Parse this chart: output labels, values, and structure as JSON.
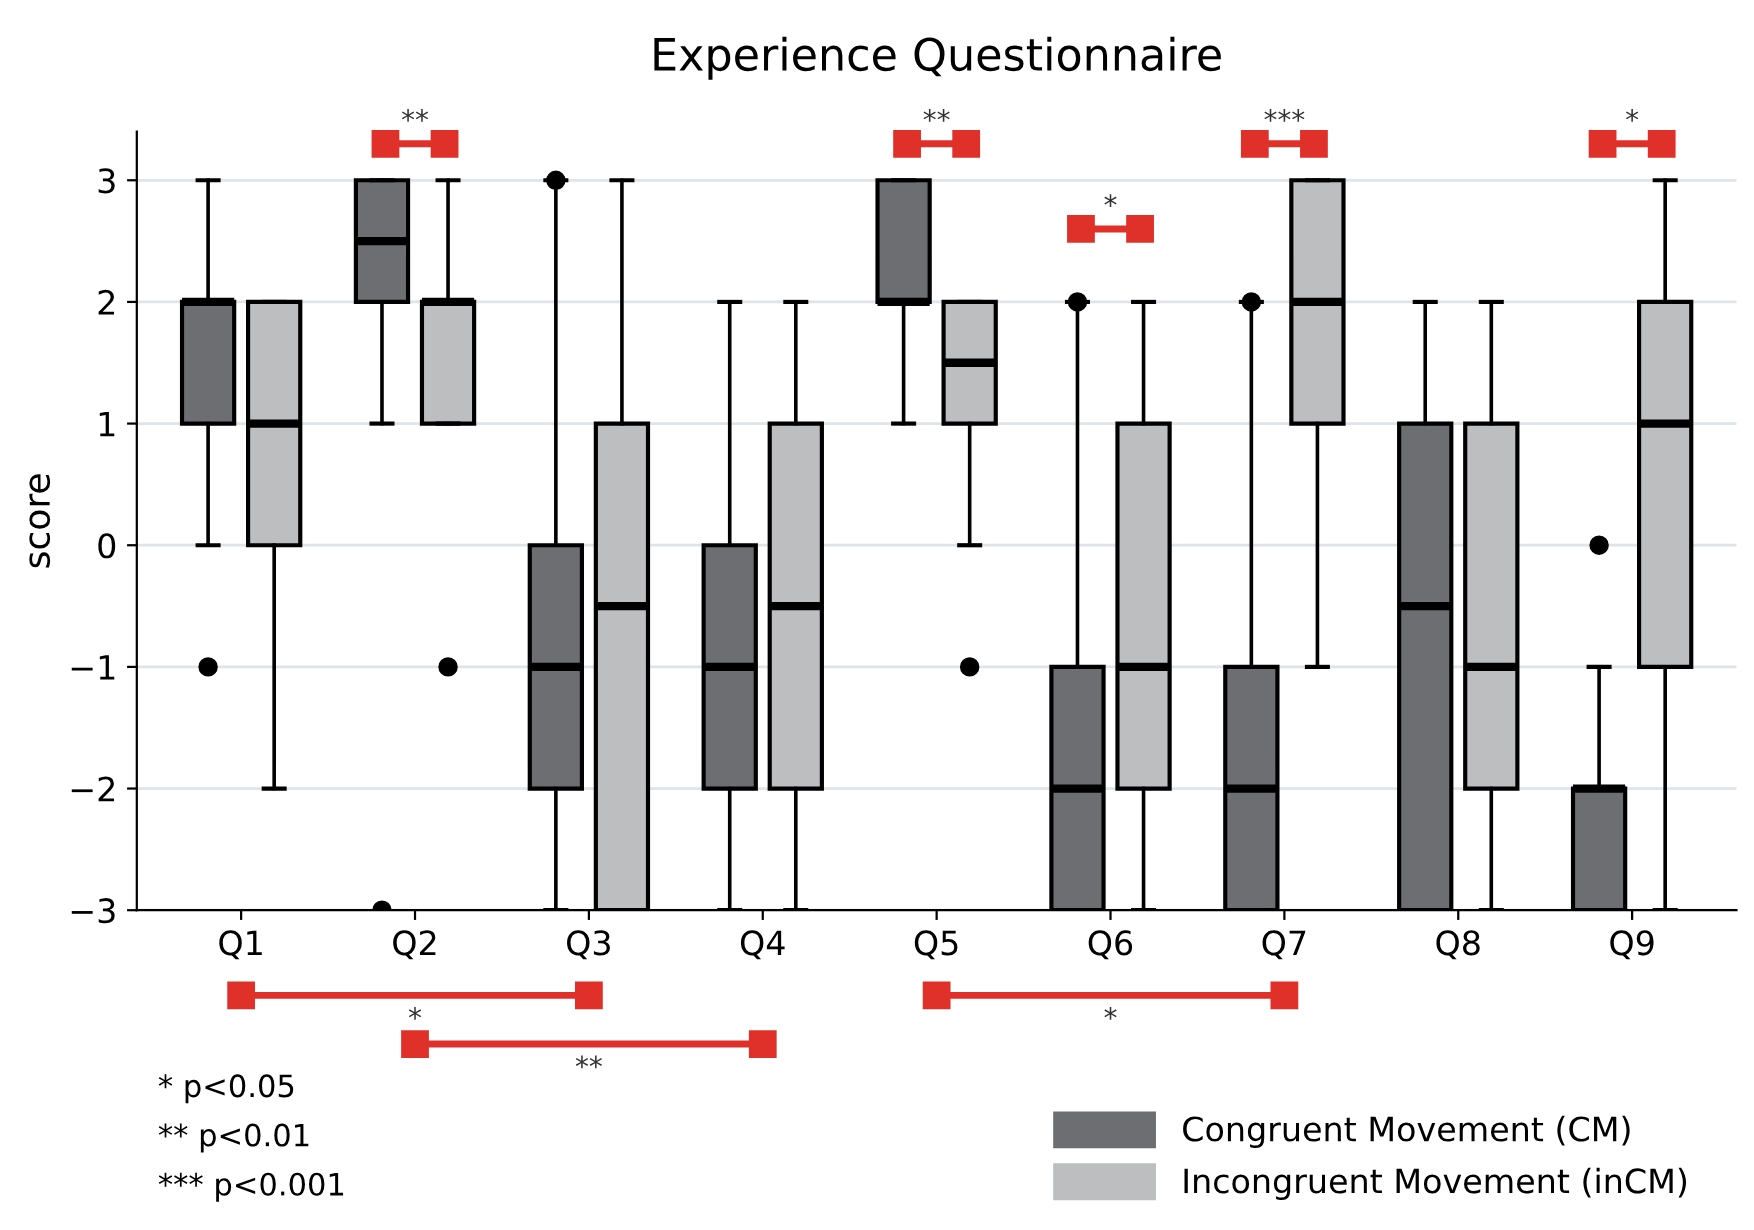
{
  "chart_data": {
    "type": "box",
    "title": "Experience Questionnaire",
    "ylabel": "score",
    "categories": [
      "Q1",
      "Q2",
      "Q3",
      "Q4",
      "Q5",
      "Q6",
      "Q7",
      "Q8",
      "Q9"
    ],
    "series": [
      {
        "name": "Congruent Movement (CM)",
        "color": "#6d6e71",
        "boxes": [
          {
            "low": 0,
            "q1": 1,
            "median": 2,
            "q3": 2,
            "high": 3,
            "outliers": [
              -1
            ]
          },
          {
            "low": 1,
            "q1": 2,
            "median": 2.5,
            "q3": 3,
            "high": 3,
            "outliers": [
              -3
            ]
          },
          {
            "low": -3,
            "q1": -2,
            "median": -1,
            "q3": 0,
            "high": 3,
            "outliers": [
              3
            ]
          },
          {
            "low": -3,
            "q1": -2,
            "median": -1,
            "q3": 0,
            "high": 2
          },
          {
            "low": 1,
            "q1": 2,
            "median": 2,
            "q3": 3,
            "high": 3
          },
          {
            "low": -3,
            "q1": -3,
            "median": -2,
            "q3": -1,
            "high": 2,
            "outliers": [
              2
            ]
          },
          {
            "low": -3,
            "q1": -3,
            "median": -2,
            "q3": -1,
            "high": 2,
            "outliers": [
              2
            ]
          },
          {
            "low": -3,
            "q1": -3,
            "median": -0.5,
            "q3": 1,
            "high": 2
          },
          {
            "low": -3,
            "q1": -3,
            "median": -2,
            "q3": -2,
            "high": -1,
            "outliers": [
              0
            ]
          }
        ]
      },
      {
        "name": "Incongruent Movement (inCM)",
        "color": "#bcbec0",
        "boxes": [
          {
            "low": -2,
            "q1": 0,
            "median": 1,
            "q3": 2,
            "high": 2
          },
          {
            "low": 1,
            "q1": 1,
            "median": 2,
            "q3": 2,
            "high": 3,
            "outliers": [
              -1
            ]
          },
          {
            "low": -3,
            "q1": -3,
            "median": -0.5,
            "q3": 1,
            "high": 3
          },
          {
            "low": -3,
            "q1": -2,
            "median": -0.5,
            "q3": 1,
            "high": 2
          },
          {
            "low": 0,
            "q1": 1,
            "median": 1.5,
            "q3": 2,
            "high": 2,
            "outliers": [
              -1
            ]
          },
          {
            "low": -3,
            "q1": -2,
            "median": -1,
            "q3": 1,
            "high": 2
          },
          {
            "low": -1,
            "q1": 1,
            "median": 2,
            "q3": 3,
            "high": 3
          },
          {
            "low": -3,
            "q1": -2,
            "median": -1,
            "q3": 1,
            "high": 2
          },
          {
            "low": -3,
            "q1": -1,
            "median": 1,
            "q3": 2,
            "high": 3
          }
        ]
      }
    ],
    "ylim": [
      -3,
      3.4
    ],
    "yticks": [
      -3,
      -2,
      -1,
      0,
      1,
      2,
      3
    ],
    "grid": "y",
    "legend": "bottom right",
    "annotations": [
      "**",
      "**",
      "*",
      "***",
      "*",
      "*",
      "**",
      "*",
      "* p<0.05",
      "** p<0.01",
      "*** p<0.001"
    ]
  }
}
